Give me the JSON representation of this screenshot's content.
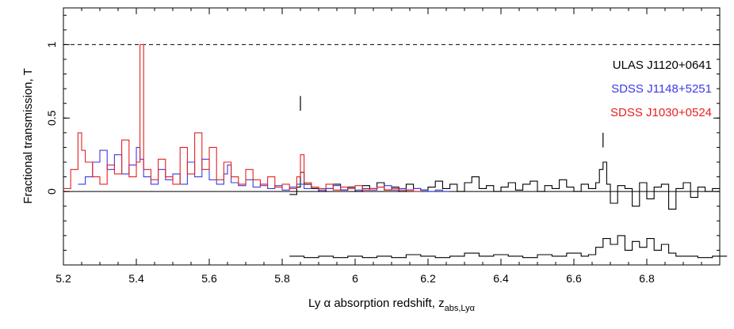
{
  "chart_data": {
    "type": "line",
    "title": "",
    "xlabel": "Ly α absorption redshift, z",
    "xlabel_subscript": "abs,Lyα",
    "ylabel": "Fractional transmission, T",
    "xlim": [
      5.2,
      7.0
    ],
    "ylim": [
      -0.5,
      1.25
    ],
    "x_ticks": [
      5.2,
      5.4,
      5.6,
      5.8,
      6.0,
      6.2,
      6.4,
      6.6,
      6.8
    ],
    "x_tick_labels": [
      "5.2",
      "5.4",
      "5.6",
      "5.8",
      "6",
      "6.2",
      "6.4",
      "6.6",
      "6.8"
    ],
    "y_ticks": [
      0,
      0.5,
      1
    ],
    "y_tick_labels": [
      "0",
      "0.5",
      "1"
    ],
    "reference_lines": [
      {
        "y": 1,
        "style": "dashed"
      },
      {
        "y": 0,
        "style": "solid"
      }
    ],
    "markers": [
      {
        "x": 5.85,
        "y_range": [
          0.55,
          0.65
        ]
      },
      {
        "x": 6.68,
        "y_range": [
          0.3,
          0.4
        ]
      }
    ],
    "legend_position": "right",
    "series": [
      {
        "name": "ULAS J1120+0641",
        "color": "#000000",
        "style": "step",
        "x": [
          5.82,
          5.84,
          5.85,
          5.86,
          5.88,
          5.9,
          5.92,
          5.94,
          5.96,
          5.98,
          6.0,
          6.02,
          6.04,
          6.06,
          6.08,
          6.1,
          6.12,
          6.14,
          6.16,
          6.18,
          6.2,
          6.22,
          6.24,
          6.26,
          6.28,
          6.3,
          6.32,
          6.34,
          6.36,
          6.38,
          6.4,
          6.42,
          6.44,
          6.46,
          6.48,
          6.5,
          6.52,
          6.54,
          6.56,
          6.58,
          6.6,
          6.62,
          6.64,
          6.66,
          6.67,
          6.68,
          6.69,
          6.7,
          6.72,
          6.74,
          6.76,
          6.78,
          6.8,
          6.82,
          6.84,
          6.86,
          6.88,
          6.9,
          6.92,
          6.94,
          6.96,
          6.98
        ],
        "y": [
          -0.02,
          0.03,
          0.13,
          0.05,
          0.02,
          0.0,
          0.02,
          0.05,
          0.01,
          0.03,
          0.0,
          0.04,
          0.02,
          0.06,
          0.01,
          0.03,
          0.0,
          0.05,
          0.02,
          0.01,
          0.03,
          0.07,
          0.02,
          0.05,
          0.0,
          0.06,
          0.1,
          0.02,
          0.04,
          0.0,
          0.03,
          0.06,
          0.01,
          0.05,
          0.07,
          0.0,
          0.04,
          0.02,
          0.08,
          0.03,
          0.0,
          0.05,
          0.02,
          0.06,
          0.15,
          0.2,
          0.05,
          -0.08,
          0.04,
          0.02,
          -0.1,
          0.06,
          -0.05,
          0.03,
          0.05,
          -0.12,
          0.02,
          0.06,
          -0.04,
          0.03,
          0.0,
          0.02
        ]
      },
      {
        "name": "SDSS J1148+5251",
        "color": "#3a3ae6",
        "style": "step",
        "x": [
          5.24,
          5.26,
          5.28,
          5.3,
          5.32,
          5.34,
          5.36,
          5.38,
          5.4,
          5.41,
          5.42,
          5.44,
          5.46,
          5.48,
          5.5,
          5.52,
          5.54,
          5.56,
          5.58,
          5.6,
          5.62,
          5.64,
          5.65,
          5.66,
          5.68,
          5.7,
          5.72,
          5.74,
          5.76,
          5.78,
          5.8,
          5.82,
          5.84,
          5.86,
          5.88,
          5.9,
          5.92,
          5.94,
          5.96,
          5.98,
          6.0,
          6.02,
          6.04,
          6.06,
          6.08,
          6.1,
          6.12,
          6.14,
          6.16,
          6.18,
          6.2,
          6.22,
          6.24
        ],
        "y": [
          0.05,
          0.1,
          0.2,
          0.28,
          0.15,
          0.25,
          0.12,
          0.18,
          0.3,
          0.22,
          0.1,
          0.05,
          0.15,
          0.08,
          0.12,
          0.05,
          0.2,
          0.1,
          0.22,
          0.08,
          0.05,
          0.12,
          0.18,
          0.06,
          0.04,
          0.08,
          0.03,
          0.05,
          0.02,
          0.04,
          0.01,
          0.03,
          0.05,
          0.02,
          0.03,
          0.01,
          0.02,
          0.04,
          0.01,
          0.02,
          0.01,
          0.02,
          0.01,
          0.03,
          0.04,
          0.01,
          0.02,
          0.01,
          0.02,
          0.01,
          0.0,
          0.01,
          0.0
        ]
      },
      {
        "name": "SDSS J1030+0524",
        "color": "#e62020",
        "style": "step",
        "x": [
          5.2,
          5.22,
          5.24,
          5.25,
          5.26,
          5.28,
          5.3,
          5.32,
          5.34,
          5.36,
          5.38,
          5.4,
          5.41,
          5.42,
          5.44,
          5.46,
          5.48,
          5.5,
          5.52,
          5.54,
          5.56,
          5.58,
          5.6,
          5.62,
          5.64,
          5.66,
          5.68,
          5.7,
          5.72,
          5.74,
          5.76,
          5.78,
          5.8,
          5.82,
          5.84,
          5.85,
          5.86,
          5.88,
          5.9,
          5.92,
          5.94,
          5.96,
          5.98,
          6.0,
          6.02,
          6.04,
          6.06,
          6.08,
          6.1,
          6.12,
          6.14,
          6.16
        ],
        "y": [
          0.02,
          0.15,
          0.4,
          0.28,
          0.2,
          0.1,
          0.05,
          0.18,
          0.12,
          0.35,
          0.1,
          0.2,
          1.0,
          0.15,
          0.08,
          0.22,
          0.1,
          0.05,
          0.3,
          0.12,
          0.4,
          0.15,
          0.3,
          0.08,
          0.2,
          0.1,
          0.05,
          0.15,
          0.08,
          0.04,
          0.1,
          0.03,
          0.05,
          0.02,
          0.1,
          0.25,
          0.06,
          0.03,
          0.02,
          0.05,
          0.01,
          0.03,
          0.02,
          0.04,
          0.01,
          0.02,
          0.03,
          0.01,
          0.02,
          0.01,
          0.01,
          0.0
        ]
      },
      {
        "name": "",
        "role": "noise",
        "color": "#000000",
        "style": "step",
        "x": [
          5.82,
          5.86,
          5.9,
          5.94,
          5.98,
          6.02,
          6.06,
          6.1,
          6.14,
          6.18,
          6.22,
          6.26,
          6.3,
          6.34,
          6.38,
          6.42,
          6.46,
          6.5,
          6.54,
          6.58,
          6.62,
          6.64,
          6.66,
          6.68,
          6.7,
          6.72,
          6.74,
          6.76,
          6.78,
          6.8,
          6.82,
          6.84,
          6.86,
          6.88,
          6.9,
          6.94,
          6.98
        ],
        "y": [
          -0.44,
          -0.45,
          -0.44,
          -0.45,
          -0.44,
          -0.45,
          -0.44,
          -0.45,
          -0.43,
          -0.44,
          -0.45,
          -0.44,
          -0.42,
          -0.44,
          -0.43,
          -0.44,
          -0.45,
          -0.43,
          -0.44,
          -0.42,
          -0.44,
          -0.43,
          -0.38,
          -0.32,
          -0.36,
          -0.3,
          -0.4,
          -0.34,
          -0.38,
          -0.32,
          -0.4,
          -0.36,
          -0.42,
          -0.44,
          -0.44,
          -0.45,
          -0.44
        ]
      }
    ]
  }
}
